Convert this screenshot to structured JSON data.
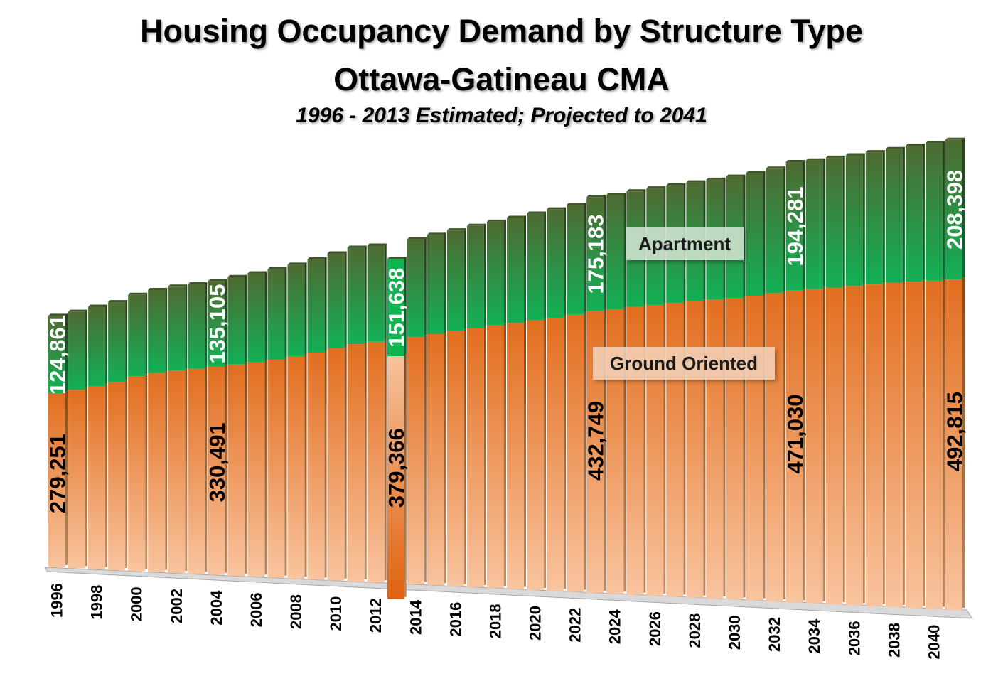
{
  "title": "Housing Occupancy Demand by Structure Type",
  "subtitle": "Ottawa-Gatineau CMA",
  "note": "1996 - 2013 Estimated; Projected to 2041",
  "colors": {
    "ground_top": "#E26E1F",
    "ground_bottom": "#F9C49E",
    "ground_highlight_top": "#F6C29C",
    "ground_highlight_bottom": "#E0620F",
    "apartment_top": "#4E6B32",
    "apartment_bottom": "#12B056",
    "apartment_highlight": "#0FB34F"
  },
  "chart_data": {
    "type": "bar",
    "stacked": true,
    "categories": [
      "1996",
      "1997",
      "1998",
      "1999",
      "2000",
      "2001",
      "2002",
      "2003",
      "2004",
      "2005",
      "2006",
      "2007",
      "2008",
      "2009",
      "2010",
      "2011",
      "2012",
      "2013",
      "2014",
      "2015",
      "2016",
      "2017",
      "2018",
      "2019",
      "2020",
      "2021",
      "2022",
      "2023",
      "2024",
      "2025",
      "2026",
      "2027",
      "2028",
      "2029",
      "2030",
      "2031",
      "2032",
      "2033",
      "2034",
      "2035",
      "2036",
      "2037",
      "2038",
      "2039",
      "2040",
      "2041"
    ],
    "tick_labels": [
      "1996",
      "1998",
      "2000",
      "2002",
      "2004",
      "2006",
      "2008",
      "2010",
      "2012",
      "2014",
      "2016",
      "2018",
      "2020",
      "2022",
      "2024",
      "2026",
      "2028",
      "2030",
      "2032",
      "2034",
      "2036",
      "2038",
      "2040"
    ],
    "series": [
      {
        "name": "Ground Oriented",
        "values": [
          279251,
          286500,
          293000,
          300500,
          311000,
          317500,
          322000,
          326000,
          330491,
          334500,
          339000,
          344000,
          350500,
          357000,
          364500,
          372000,
          376500,
          379366,
          385500,
          391000,
          396500,
          402000,
          407000,
          411500,
          416500,
          421000,
          426500,
          432749,
          436500,
          441000,
          444500,
          448000,
          451500,
          454500,
          458000,
          462000,
          466500,
          471030,
          474000,
          477000,
          480000,
          483000,
          486000,
          488500,
          490500,
          492815
        ],
        "data_labels": {
          "1996": "279,251",
          "2004": "330,491",
          "2013": "379,366",
          "2023": "432,749",
          "2033": "471,030",
          "2041": "492,815"
        }
      },
      {
        "name": "Apartment",
        "values": [
          124861,
          125000,
          127500,
          128000,
          130000,
          132000,
          133500,
          134000,
          135105,
          138500,
          140500,
          142500,
          144000,
          146500,
          149000,
          151000,
          150500,
          151638,
          152500,
          154500,
          156500,
          158500,
          160500,
          162500,
          164500,
          167000,
          169000,
          175183,
          175500,
          176500,
          178000,
          179500,
          181000,
          182500,
          184000,
          186000,
          188500,
          194281,
          194000,
          195500,
          196500,
          198500,
          200500,
          203000,
          205500,
          208398
        ],
        "data_labels": {
          "1996": "124,861",
          "2004": "135,105",
          "2013": "151,638",
          "2023": "175,183",
          "2033": "194,281",
          "2041": "208,398"
        }
      }
    ],
    "highlight_category": "2013",
    "series_labels": [
      {
        "series": "Apartment",
        "text": "Apartment"
      },
      {
        "series": "Ground Oriented",
        "text": "Ground Oriented"
      }
    ]
  }
}
